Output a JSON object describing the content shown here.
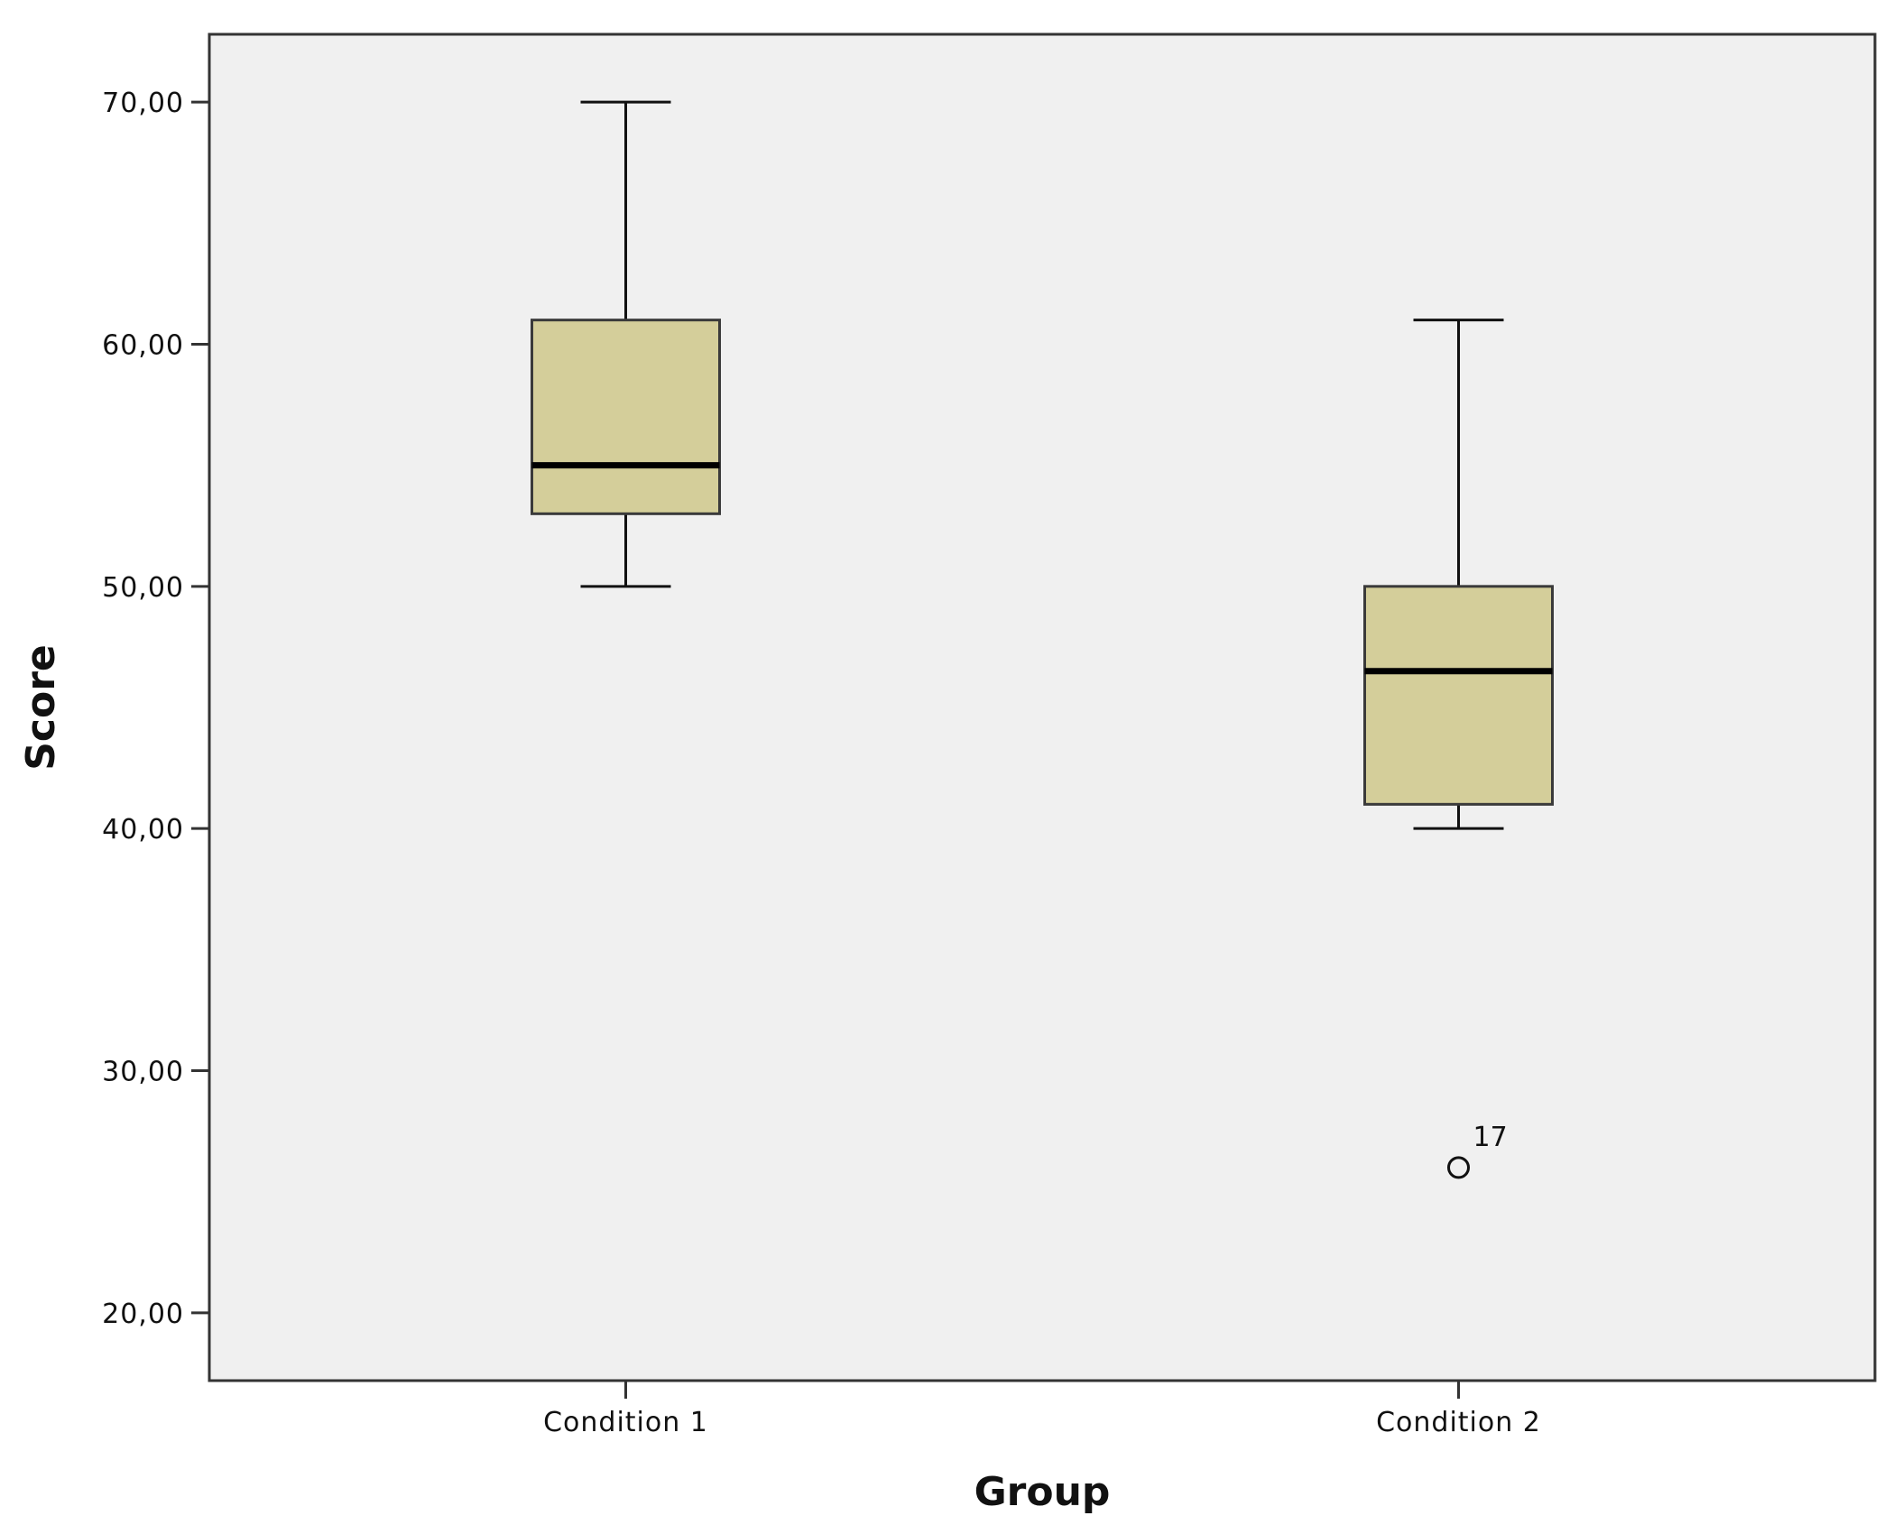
{
  "chart_data": {
    "type": "boxplot",
    "xlabel": "Group",
    "ylabel": "Score",
    "ylim": [
      17.2,
      72.8
    ],
    "yticks": [
      {
        "value": 20,
        "label": "20,00"
      },
      {
        "value": 30,
        "label": "30,00"
      },
      {
        "value": 40,
        "label": "40,00"
      },
      {
        "value": 50,
        "label": "50,00"
      },
      {
        "value": 60,
        "label": "60,00"
      },
      {
        "value": 70,
        "label": "70,00"
      }
    ],
    "categories": [
      "Condition 1",
      "Condition 2"
    ],
    "boxes": [
      {
        "category": "Condition 1",
        "whisker_low": 50,
        "q1": 53,
        "median": 55,
        "q3": 61,
        "whisker_high": 70,
        "outliers": []
      },
      {
        "category": "Condition 2",
        "whisker_low": 40,
        "q1": 41,
        "median": 46.5,
        "q3": 50,
        "whisker_high": 61,
        "outliers": [
          {
            "value": 26,
            "label": "17"
          }
        ]
      }
    ],
    "grid": false,
    "colors": {
      "plot_bg": "#f0f0f0",
      "box_fill": "#d4ce9a",
      "box_stroke": "#3a3a3a",
      "median": "#000000"
    }
  }
}
